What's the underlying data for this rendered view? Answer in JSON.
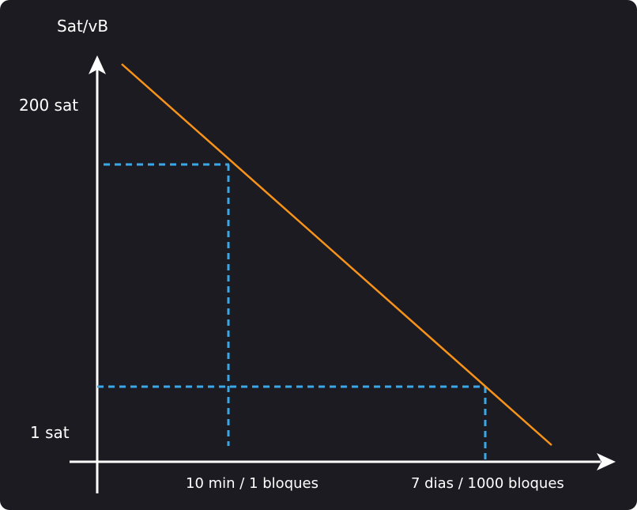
{
  "labels": {
    "y_axis": "Sat/vB",
    "y_high": "200 sat",
    "y_low": "1 sat",
    "x_left": "10 min / 1 bloques",
    "x_right": "7 dias / 1000 bloques"
  },
  "colors": {
    "background": "#1c1b21",
    "axis": "#ffffff",
    "fee_line": "#f7931a",
    "guide": "#3aa7e6"
  }
}
